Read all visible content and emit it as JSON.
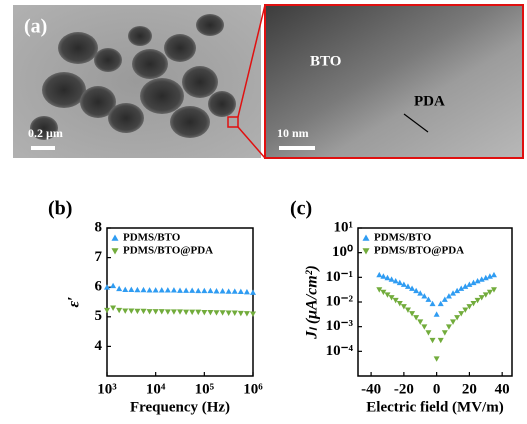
{
  "panel_a": {
    "label": "(a)",
    "scale_left": "0.2 µm",
    "scale_right": "10 nm",
    "label_bto": "BTO",
    "label_pda": "PDA"
  },
  "chart_data": [
    {
      "type": "scatter",
      "panel_label": "(b)",
      "y_label": "ε′",
      "x_label": "Frequency (Hz)",
      "xlog": true,
      "xlim": [
        1000,
        1000000
      ],
      "ylim": [
        3,
        8
      ],
      "yticks": [
        4,
        5,
        6,
        7,
        8
      ],
      "xticks": [
        {
          "value": 1000,
          "label": "10³"
        },
        {
          "value": 10000,
          "label": "10⁴"
        },
        {
          "value": 100000,
          "label": "10⁵"
        },
        {
          "value": 1000000,
          "label": "10⁶"
        }
      ],
      "x": [
        1000,
        1334,
        1778,
        2371,
        3162,
        4217,
        5623,
        7499,
        10000,
        13335,
        17783,
        23714,
        31623,
        42170,
        56234,
        74989,
        100000,
        133352,
        177828,
        237137,
        316228,
        421697,
        562341,
        749894,
        1000000
      ],
      "series": [
        {
          "name": "PDMS/BTO",
          "color": "#2f9cf2",
          "marker": "^",
          "values": [
            6.0,
            6.05,
            5.95,
            5.92,
            5.92,
            5.91,
            5.91,
            5.9,
            5.9,
            5.9,
            5.9,
            5.9,
            5.89,
            5.89,
            5.89,
            5.88,
            5.88,
            5.88,
            5.87,
            5.87,
            5.86,
            5.86,
            5.85,
            5.84,
            5.82
          ]
        },
        {
          "name": "PDMS/BTO@PDA",
          "color": "#72ac3c",
          "marker": "v",
          "values": [
            5.22,
            5.3,
            5.22,
            5.2,
            5.2,
            5.19,
            5.19,
            5.18,
            5.18,
            5.18,
            5.17,
            5.17,
            5.17,
            5.16,
            5.16,
            5.16,
            5.15,
            5.15,
            5.14,
            5.14,
            5.13,
            5.13,
            5.12,
            5.11,
            5.1
          ]
        }
      ]
    },
    {
      "type": "scatter",
      "panel_label": "(c)",
      "y_label": "Jₗ (μA/cm²)",
      "x_label": "Electric field (MV/m)",
      "ylog": true,
      "xlim": [
        -48,
        46
      ],
      "ylim": [
        1e-05,
        10
      ],
      "xticks": [
        -40,
        -20,
        0,
        20,
        40
      ],
      "yticks": [
        {
          "value": 10,
          "label": "10¹"
        },
        {
          "value": 1,
          "label": "10⁰"
        },
        {
          "value": 0.1,
          "label": "10⁻¹"
        },
        {
          "value": 0.01,
          "label": "10⁻²"
        },
        {
          "value": 0.001,
          "label": "10⁻³"
        },
        {
          "value": 0.0001,
          "label": "10⁻⁴"
        }
      ],
      "x": [
        -35,
        -32.5,
        -30,
        -27.5,
        -25,
        -22.5,
        -20,
        -17.5,
        -15,
        -12.5,
        -10,
        -7.5,
        -5,
        -2.5,
        0,
        2.5,
        5,
        7.5,
        10,
        12.5,
        15,
        17.5,
        20,
        22.5,
        25,
        27.5,
        30,
        32.5,
        35
      ],
      "series": [
        {
          "name": "PDMS/BTO",
          "color": "#2f9cf2",
          "marker": "^",
          "values": [
            0.126,
            0.11,
            0.0957,
            0.0828,
            0.0711,
            0.0607,
            0.0512,
            0.0428,
            0.0353,
            0.0286,
            0.0226,
            0.0174,
            0.0127,
            0.00847,
            0.00316,
            0.00847,
            0.0127,
            0.0174,
            0.0226,
            0.0286,
            0.0353,
            0.0428,
            0.0512,
            0.0607,
            0.0711,
            0.0828,
            0.0957,
            0.11,
            0.126
          ]
        },
        {
          "name": "PDMS/BTO@PDA",
          "color": "#72ac3c",
          "marker": "v",
          "values": [
            0.0316,
            0.025,
            0.0196,
            0.0152,
            0.0117,
            0.00881,
            0.00656,
            0.00479,
            0.00341,
            0.00236,
            0.00157,
            0.000991,
            0.000573,
            0.000281,
            5.01e-05,
            0.000281,
            0.000573,
            0.000991,
            0.00157,
            0.00236,
            0.00341,
            0.00479,
            0.00656,
            0.00881,
            0.0117,
            0.0152,
            0.0196,
            0.025,
            0.0316
          ]
        }
      ]
    }
  ]
}
